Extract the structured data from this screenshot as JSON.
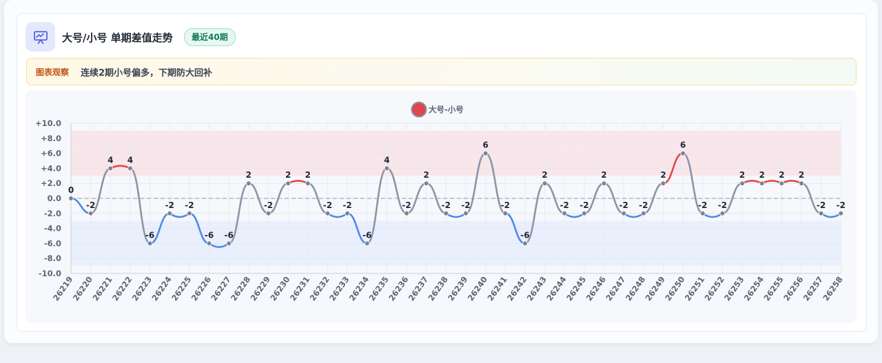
{
  "header": {
    "icon": "presentation-chart-icon",
    "title": "大号/小号 单期差值走势",
    "badge": "最近40期"
  },
  "insight": {
    "label": "图表观察",
    "text": "连续2期小号偏多，下期防大回补"
  },
  "colors": {
    "positive": "#e0474c",
    "negative": "#4f8ae5",
    "neutral": "#8a96a6",
    "band_high": "#f9e3e6",
    "band_low": "#e6edfb"
  },
  "chart_data": {
    "type": "line",
    "title": "",
    "xlabel": "",
    "ylabel": "",
    "ylim": [
      -10,
      10
    ],
    "yticks": [
      "+10.0",
      "+8.0",
      "+6.0",
      "+4.0",
      "+2.0",
      "0.0",
      "-2.0",
      "-4.0",
      "-6.0",
      "-8.0",
      "-10.0"
    ],
    "grid": true,
    "legend_position": "top-center",
    "categories": [
      "26219",
      "26220",
      "26221",
      "26222",
      "26223",
      "26224",
      "26225",
      "26226",
      "26227",
      "26228",
      "26229",
      "26230",
      "26231",
      "26232",
      "26233",
      "26234",
      "26235",
      "26236",
      "26237",
      "26238",
      "26239",
      "26240",
      "26241",
      "26242",
      "26243",
      "26244",
      "26245",
      "26246",
      "26247",
      "26248",
      "26249",
      "26250",
      "26251",
      "26252",
      "26253",
      "26254",
      "26255",
      "26256",
      "26257",
      "26258"
    ],
    "series": [
      {
        "name": "大号-小号",
        "values": [
          0,
          -2,
          4,
          4,
          -6,
          -2,
          -2,
          -6,
          -6,
          2,
          -2,
          2,
          2,
          -2,
          -2,
          -6,
          4,
          -2,
          2,
          -2,
          -2,
          6,
          -2,
          -6,
          2,
          -2,
          -2,
          2,
          -2,
          -2,
          2,
          6,
          -2,
          -2,
          2,
          2,
          2,
          2,
          -2,
          -2
        ]
      }
    ],
    "data_labels": [
      "0",
      "-2",
      "4",
      "4",
      "-6",
      "-2",
      "-2",
      "-6",
      "-6",
      "2",
      "-2",
      "2",
      "2",
      "-2",
      "-2",
      "-6",
      "4",
      "-2",
      "2",
      "-2",
      "-2",
      "6",
      "-2",
      "-6",
      "2",
      "-2",
      "-2",
      "2",
      "-2",
      "-2",
      "2",
      "6",
      "-2",
      "-2",
      "2",
      "2",
      "2",
      "2",
      "-2",
      "-2"
    ],
    "bands": [
      {
        "range": [
          3,
          9
        ],
        "color": "#f9e3e6"
      },
      {
        "range": [
          -9,
          -3
        ],
        "color": "#e6edfb"
      }
    ],
    "reference_line": 0
  }
}
